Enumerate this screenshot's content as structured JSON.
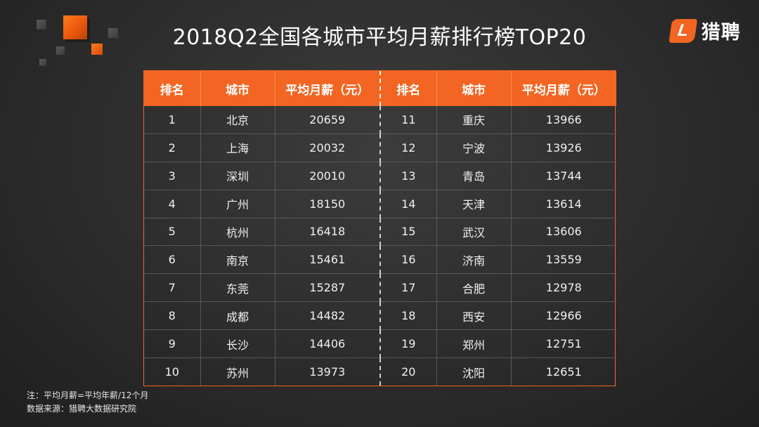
{
  "title": "2018Q2全国各城市平均月薪排行榜TOP20",
  "logo": {
    "mark": "L",
    "text": "猎聘"
  },
  "table": {
    "headers": [
      "排名",
      "城市",
      "平均月薪（元）",
      "排名",
      "城市",
      "平均月薪（元）"
    ],
    "rows": [
      [
        {
          "rank": "1",
          "city": "北京",
          "salary": "20659"
        },
        {
          "rank": "11",
          "city": "重庆",
          "salary": "13966"
        }
      ],
      [
        {
          "rank": "2",
          "city": "上海",
          "salary": "20032"
        },
        {
          "rank": "12",
          "city": "宁波",
          "salary": "13926"
        }
      ],
      [
        {
          "rank": "3",
          "city": "深圳",
          "salary": "20010"
        },
        {
          "rank": "13",
          "city": "青岛",
          "salary": "13744"
        }
      ],
      [
        {
          "rank": "4",
          "city": "广州",
          "salary": "18150"
        },
        {
          "rank": "14",
          "city": "天津",
          "salary": "13614"
        }
      ],
      [
        {
          "rank": "5",
          "city": "杭州",
          "salary": "16418"
        },
        {
          "rank": "15",
          "city": "武汉",
          "salary": "13606"
        }
      ],
      [
        {
          "rank": "6",
          "city": "南京",
          "salary": "15461"
        },
        {
          "rank": "16",
          "city": "济南",
          "salary": "13559"
        }
      ],
      [
        {
          "rank": "7",
          "city": "东莞",
          "salary": "15287"
        },
        {
          "rank": "17",
          "city": "合肥",
          "salary": "12978"
        }
      ],
      [
        {
          "rank": "8",
          "city": "成都",
          "salary": "14482"
        },
        {
          "rank": "18",
          "city": "西安",
          "salary": "12966"
        }
      ],
      [
        {
          "rank": "9",
          "city": "长沙",
          "salary": "14406"
        },
        {
          "rank": "19",
          "city": "郑州",
          "salary": "12751"
        }
      ],
      [
        {
          "rank": "10",
          "city": "苏州",
          "salary": "13973"
        },
        {
          "rank": "20",
          "city": "沈阳",
          "salary": "12651"
        }
      ]
    ]
  },
  "notes": {
    "note": "注：平均月薪=平均年薪/12个月",
    "source": "数据来源：猎聘大数据研究院"
  },
  "colors": {
    "accent": "#f26522",
    "background": "#2c2c2c",
    "text": "#ffffff"
  }
}
